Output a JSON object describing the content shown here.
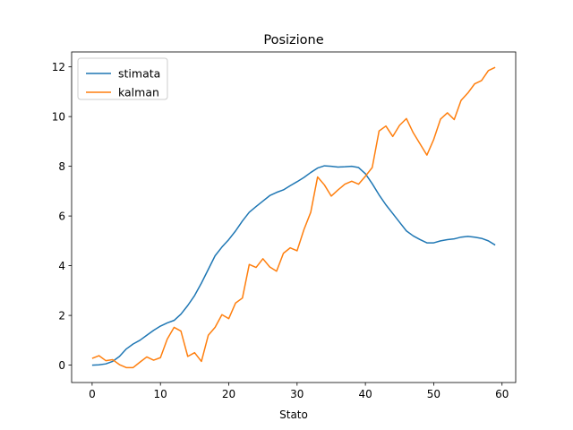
{
  "chart_data": {
    "type": "line",
    "title": "Posizione",
    "xlabel": "Stato",
    "ylabel": "",
    "xlim": [
      -3,
      62
    ],
    "ylim": [
      -0.7,
      12.6
    ],
    "x_ticks": [
      0,
      10,
      20,
      30,
      40,
      50,
      60
    ],
    "y_ticks": [
      0,
      2,
      4,
      6,
      8,
      10,
      12
    ],
    "grid": false,
    "legend_position": "top-left",
    "x": [
      0,
      1,
      2,
      3,
      4,
      5,
      6,
      7,
      8,
      9,
      10,
      11,
      12,
      13,
      14,
      15,
      16,
      17,
      18,
      19,
      20,
      21,
      22,
      23,
      24,
      25,
      26,
      27,
      28,
      29,
      30,
      31,
      32,
      33,
      34,
      35,
      36,
      37,
      38,
      39,
      40,
      41,
      42,
      43,
      44,
      45,
      46,
      47,
      48,
      49,
      50,
      51,
      52,
      53,
      54,
      55,
      56,
      57,
      58,
      59
    ],
    "series": [
      {
        "name": "stimata",
        "color": "#1f77b4",
        "values": [
          0.0,
          0.01,
          0.05,
          0.15,
          0.35,
          0.65,
          0.85,
          1.0,
          1.2,
          1.4,
          1.57,
          1.7,
          1.8,
          2.05,
          2.4,
          2.8,
          3.3,
          3.85,
          4.4,
          4.75,
          5.05,
          5.4,
          5.8,
          6.15,
          6.38,
          6.6,
          6.82,
          6.95,
          7.05,
          7.22,
          7.38,
          7.55,
          7.75,
          7.93,
          8.02,
          8.0,
          7.97,
          7.98,
          8.0,
          7.95,
          7.7,
          7.3,
          6.85,
          6.45,
          6.1,
          5.75,
          5.4,
          5.2,
          5.05,
          4.92,
          4.92,
          5.0,
          5.05,
          5.08,
          5.15,
          5.18,
          5.15,
          5.1,
          5.0,
          4.83
        ]
      },
      {
        "name": "kalman",
        "color": "#ff7f0e",
        "values": [
          0.27,
          0.38,
          0.18,
          0.22,
          0.02,
          -0.1,
          -0.1,
          0.12,
          0.33,
          0.2,
          0.3,
          1.05,
          1.52,
          1.37,
          0.35,
          0.5,
          0.15,
          1.2,
          1.52,
          2.03,
          1.87,
          2.5,
          2.7,
          4.05,
          3.93,
          4.28,
          3.95,
          3.78,
          4.5,
          4.72,
          4.6,
          5.45,
          6.15,
          7.57,
          7.25,
          6.8,
          7.05,
          7.28,
          7.4,
          7.28,
          7.6,
          7.95,
          9.42,
          9.62,
          9.2,
          9.65,
          9.92,
          9.35,
          8.9,
          8.45,
          9.08,
          9.9,
          10.15,
          9.88,
          10.65,
          10.95,
          11.32,
          11.45,
          11.85,
          11.98
        ]
      }
    ]
  }
}
